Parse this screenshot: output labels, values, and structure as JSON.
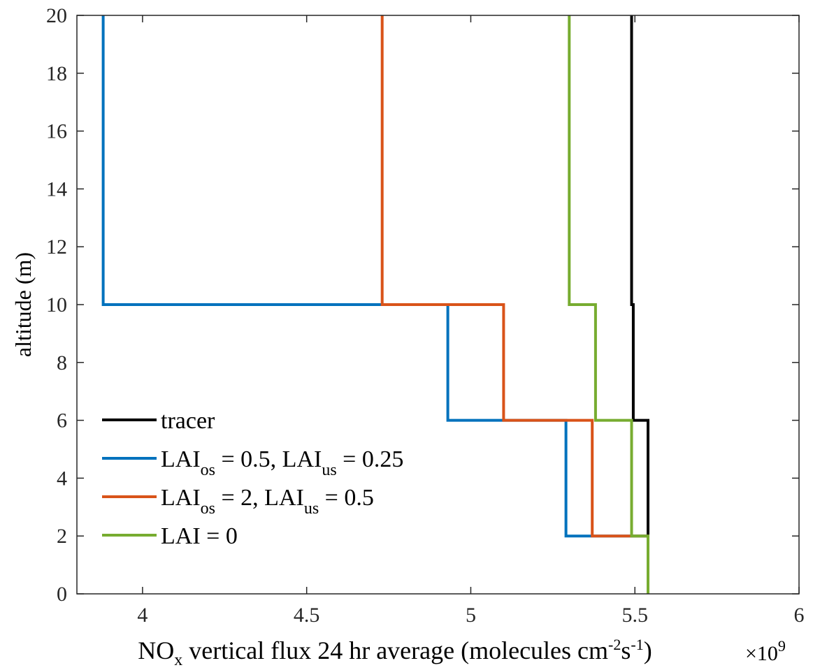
{
  "chart_data": {
    "type": "line",
    "title": "",
    "xlabel": {
      "pre": "NO",
      "pre_sub": "x",
      "mid": " vertical flux 24 hr average (molecules cm",
      "sup1": "-2",
      "mid2": "s",
      "sup2": "-1",
      "post": ")"
    },
    "ylabel": "altitude (m)",
    "x_multiplier": {
      "base": "×10",
      "exponent": "9"
    },
    "xlim": [
      3.8,
      6.0
    ],
    "ylim": [
      0,
      20
    ],
    "x_ticks": [
      4,
      4.5,
      5,
      5.5,
      6
    ],
    "x_tick_labels": [
      "4",
      "4.5",
      "5",
      "5.5",
      "6"
    ],
    "y_ticks": [
      0,
      2,
      4,
      6,
      8,
      10,
      12,
      14,
      16,
      18,
      20
    ],
    "y_tick_labels": [
      "0",
      "2",
      "4",
      "6",
      "8",
      "10",
      "12",
      "14",
      "16",
      "18",
      "20"
    ],
    "grid": false,
    "legend_position": "bottom-left",
    "series": [
      {
        "name": "tracer",
        "legend": {
          "parts": [
            {
              "t": "tracer"
            }
          ]
        },
        "color": "#000000",
        "points": [
          [
            5.54,
            0
          ],
          [
            5.54,
            2
          ],
          [
            5.54,
            6
          ],
          [
            5.495,
            6
          ],
          [
            5.495,
            10
          ],
          [
            5.49,
            10
          ],
          [
            5.49,
            20
          ]
        ]
      },
      {
        "name": "LAIos = 0.5, LAIus = 0.25",
        "legend": {
          "parts": [
            {
              "t": "LAI"
            },
            {
              "t": "os",
              "sub": true
            },
            {
              "t": " = 0.5, LAI"
            },
            {
              "t": "us",
              "sub": true
            },
            {
              "t": " = 0.25"
            }
          ]
        },
        "color": "#0072BD",
        "points": [
          [
            5.54,
            0
          ],
          [
            5.54,
            2
          ],
          [
            5.29,
            2
          ],
          [
            5.29,
            6
          ],
          [
            4.93,
            6
          ],
          [
            4.93,
            10
          ],
          [
            3.88,
            10
          ],
          [
            3.88,
            20
          ]
        ]
      },
      {
        "name": "LAIos = 2, LAIus = 0.5",
        "legend": {
          "parts": [
            {
              "t": "LAI"
            },
            {
              "t": "os",
              "sub": true
            },
            {
              "t": " = 2, LAI"
            },
            {
              "t": "us",
              "sub": true
            },
            {
              "t": " = 0.5"
            }
          ]
        },
        "color": "#D95319",
        "points": [
          [
            5.54,
            0
          ],
          [
            5.54,
            2
          ],
          [
            5.37,
            2
          ],
          [
            5.37,
            6
          ],
          [
            5.1,
            6
          ],
          [
            5.1,
            10
          ],
          [
            4.73,
            10
          ],
          [
            4.73,
            20
          ]
        ]
      },
      {
        "name": "LAI = 0",
        "legend": {
          "parts": [
            {
              "t": "LAI = 0"
            }
          ]
        },
        "color": "#77AC30",
        "points": [
          [
            5.54,
            0
          ],
          [
            5.54,
            2
          ],
          [
            5.49,
            2
          ],
          [
            5.49,
            6
          ],
          [
            5.38,
            6
          ],
          [
            5.38,
            10
          ],
          [
            5.3,
            10
          ],
          [
            5.3,
            20
          ]
        ]
      }
    ]
  }
}
